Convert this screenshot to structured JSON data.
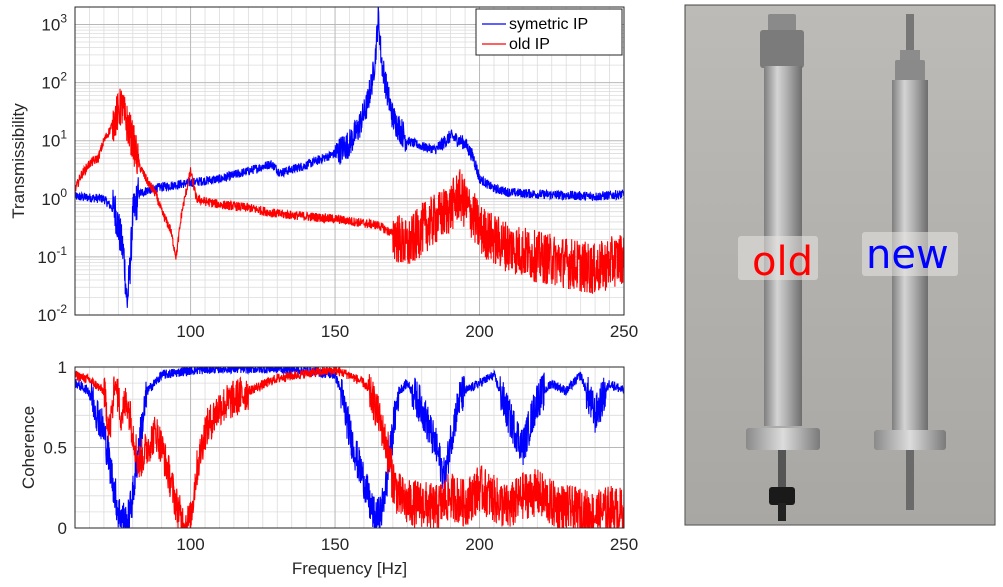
{
  "chart_data": [
    {
      "type": "line",
      "ylabel": "Transmissibility",
      "yscale": "log",
      "xlim": [
        60,
        250
      ],
      "ylim": [
        0.01,
        2000
      ],
      "xticks": [
        100,
        150,
        200,
        250
      ],
      "yticks": [
        0.01,
        0.1,
        1,
        10,
        100,
        1000
      ],
      "ytick_labels": [
        {
          "base": "10",
          "exp": "-2"
        },
        {
          "base": "10",
          "exp": "-1"
        },
        {
          "base": "10",
          "exp": "0"
        },
        {
          "base": "10",
          "exp": "1"
        },
        {
          "base": "10",
          "exp": "2"
        },
        {
          "base": "10",
          "exp": "3"
        }
      ],
      "grid": true,
      "legend": "top-right",
      "series": [
        {
          "name": "symetric IP",
          "color": "#0000ff",
          "x": [
            60,
            70,
            74,
            77,
            78,
            79,
            80,
            82,
            85,
            90,
            100,
            110,
            120,
            128,
            131,
            135,
            140,
            145,
            150,
            155,
            158,
            161,
            163,
            164,
            165,
            166,
            168,
            170,
            175,
            180,
            185,
            190,
            195,
            198,
            200,
            205,
            210,
            220,
            230,
            240,
            250
          ],
          "y": [
            1.1,
            1.0,
            0.6,
            0.1,
            0.015,
            0.06,
            0.5,
            1.2,
            1.4,
            1.6,
            1.9,
            2.2,
            3.0,
            4.0,
            2.8,
            3.2,
            3.8,
            4.8,
            6.0,
            9.0,
            16.0,
            40.0,
            120.0,
            300.0,
            1500.0,
            250.0,
            70.0,
            25.0,
            10.0,
            8.0,
            7.0,
            12.0,
            9.0,
            5.0,
            2.2,
            1.5,
            1.3,
            1.2,
            1.15,
            1.1,
            1.2
          ]
        },
        {
          "name": "old IP",
          "color": "#ff0000",
          "x": [
            60,
            62,
            65,
            68,
            70,
            72,
            74,
            76,
            78,
            80,
            82,
            85,
            88,
            90,
            93,
            95,
            97,
            100,
            102,
            105,
            110,
            120,
            130,
            140,
            150,
            160,
            165,
            170,
            175,
            180,
            185,
            190,
            193,
            195,
            198,
            200,
            205,
            210,
            220,
            230,
            240,
            250
          ],
          "y": [
            1.4,
            2.5,
            4.0,
            5.0,
            10.0,
            15.0,
            25.0,
            40.0,
            20.0,
            10.0,
            4.0,
            2.0,
            1.2,
            0.6,
            0.3,
            0.1,
            0.6,
            3.0,
            1.0,
            0.9,
            0.8,
            0.7,
            0.55,
            0.5,
            0.45,
            0.38,
            0.35,
            0.25,
            0.15,
            0.3,
            0.45,
            0.7,
            1.2,
            0.8,
            0.5,
            0.3,
            0.2,
            0.15,
            0.1,
            0.08,
            0.06,
            0.1
          ]
        }
      ]
    },
    {
      "type": "line",
      "xlabel": "Frequency [Hz]",
      "ylabel": "Coherence",
      "xlim": [
        60,
        250
      ],
      "ylim": [
        0,
        1
      ],
      "xticks": [
        100,
        150,
        200,
        250
      ],
      "yticks": [
        0,
        0.5,
        1
      ],
      "ytick_labels": [
        "0",
        "0.5",
        "1"
      ],
      "grid": true,
      "series": [
        {
          "name": "symetric IP",
          "color": "#0000ff",
          "x": [
            60,
            65,
            70,
            73,
            75,
            77,
            78,
            80,
            82,
            85,
            90,
            100,
            110,
            120,
            130,
            140,
            150,
            152,
            155,
            158,
            160,
            162,
            164,
            166,
            168,
            170,
            172,
            175,
            180,
            185,
            188,
            190,
            193,
            195,
            200,
            205,
            210,
            215,
            220,
            225,
            230,
            235,
            240,
            245,
            250
          ],
          "y": [
            0.9,
            0.85,
            0.6,
            0.3,
            0.1,
            0.05,
            0.02,
            0.2,
            0.5,
            0.85,
            0.95,
            0.98,
            0.99,
            0.99,
            0.99,
            0.98,
            0.95,
            0.85,
            0.6,
            0.4,
            0.3,
            0.15,
            0.05,
            0.1,
            0.3,
            0.6,
            0.85,
            0.9,
            0.75,
            0.5,
            0.3,
            0.55,
            0.8,
            0.85,
            0.9,
            0.95,
            0.7,
            0.5,
            0.8,
            0.9,
            0.85,
            0.95,
            0.7,
            0.9,
            0.85
          ]
        },
        {
          "name": "old IP",
          "color": "#ff0000",
          "x": [
            60,
            65,
            70,
            72,
            74,
            76,
            78,
            80,
            82,
            85,
            88,
            90,
            93,
            95,
            97,
            98,
            100,
            102,
            105,
            110,
            115,
            120,
            130,
            140,
            150,
            155,
            160,
            163,
            165,
            168,
            170,
            172,
            175,
            180,
            185,
            190,
            195,
            200,
            205,
            210,
            215,
            220,
            225,
            230,
            235,
            240,
            245,
            250
          ],
          "y": [
            0.95,
            0.92,
            0.85,
            0.6,
            0.9,
            0.7,
            0.8,
            0.6,
            0.4,
            0.5,
            0.6,
            0.5,
            0.3,
            0.15,
            0.05,
            0.02,
            0.05,
            0.35,
            0.6,
            0.75,
            0.8,
            0.85,
            0.93,
            0.96,
            0.98,
            0.95,
            0.9,
            0.8,
            0.7,
            0.5,
            0.3,
            0.2,
            0.15,
            0.15,
            0.12,
            0.2,
            0.15,
            0.25,
            0.18,
            0.12,
            0.2,
            0.22,
            0.15,
            0.12,
            0.1,
            0.08,
            0.12,
            0.1
          ]
        }
      ]
    }
  ],
  "photo": {
    "label_old": "old",
    "label_new": "new",
    "label_old_color": "#ff0000",
    "label_new_color": "#0000ff",
    "background_color": "#b8b6b2"
  }
}
